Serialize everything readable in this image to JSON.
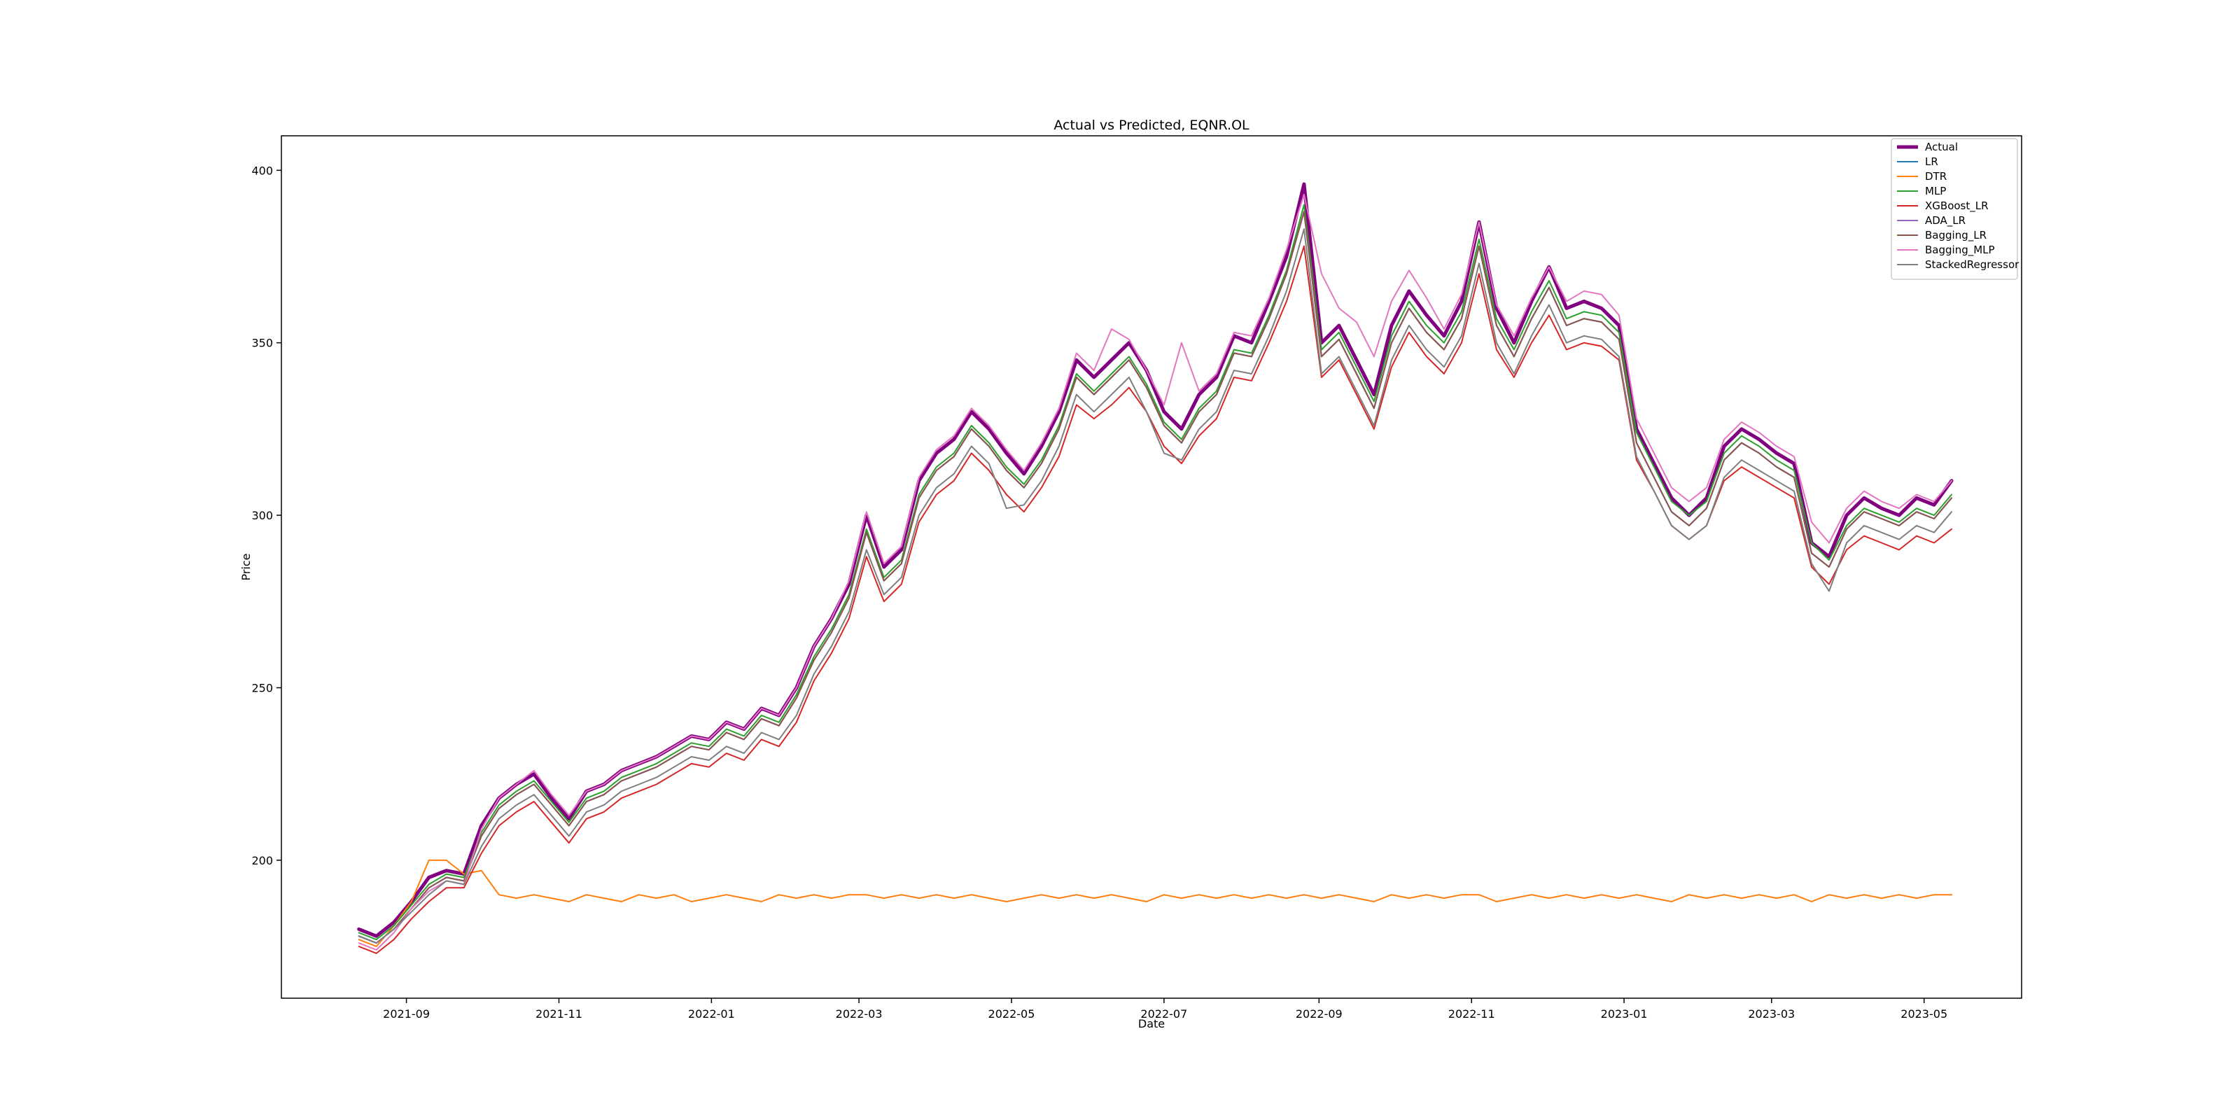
{
  "chart_data": {
    "type": "line",
    "title": "Actual vs Predicted, EQNR.OL",
    "xlabel": "Date",
    "ylabel": "Price",
    "xlim": [
      "2021-07-13",
      "2023-06-09"
    ],
    "ylim": [
      160,
      410
    ],
    "x_ticks": [
      "2021-09",
      "2021-11",
      "2022-01",
      "2022-03",
      "2022-05",
      "2022-07",
      "2022-09",
      "2022-11",
      "2023-01",
      "2023-03",
      "2023-05"
    ],
    "y_ticks": [
      200,
      250,
      300,
      350,
      400
    ],
    "grid": false,
    "legend_position": "upper-right",
    "x": [
      "2021-08-13",
      "2021-08-20",
      "2021-08-27",
      "2021-09-03",
      "2021-09-10",
      "2021-09-17",
      "2021-09-24",
      "2021-10-01",
      "2021-10-08",
      "2021-10-15",
      "2021-10-22",
      "2021-10-29",
      "2021-11-05",
      "2021-11-12",
      "2021-11-19",
      "2021-11-26",
      "2021-12-03",
      "2021-12-10",
      "2021-12-17",
      "2021-12-24",
      "2021-12-31",
      "2022-01-07",
      "2022-01-14",
      "2022-01-21",
      "2022-01-28",
      "2022-02-04",
      "2022-02-11",
      "2022-02-18",
      "2022-02-25",
      "2022-03-04",
      "2022-03-11",
      "2022-03-18",
      "2022-03-25",
      "2022-04-01",
      "2022-04-08",
      "2022-04-15",
      "2022-04-22",
      "2022-04-29",
      "2022-05-06",
      "2022-05-13",
      "2022-05-20",
      "2022-05-27",
      "2022-06-03",
      "2022-06-10",
      "2022-06-17",
      "2022-06-24",
      "2022-07-01",
      "2022-07-08",
      "2022-07-15",
      "2022-07-22",
      "2022-07-29",
      "2022-08-05",
      "2022-08-12",
      "2022-08-19",
      "2022-08-26",
      "2022-09-02",
      "2022-09-09",
      "2022-09-16",
      "2022-09-23",
      "2022-09-30",
      "2022-10-07",
      "2022-10-14",
      "2022-10-21",
      "2022-10-28",
      "2022-11-04",
      "2022-11-11",
      "2022-11-18",
      "2022-11-25",
      "2022-12-02",
      "2022-12-09",
      "2022-12-16",
      "2022-12-23",
      "2022-12-30",
      "2023-01-06",
      "2023-01-13",
      "2023-01-20",
      "2023-01-27",
      "2023-02-03",
      "2023-02-10",
      "2023-02-17",
      "2023-02-24",
      "2023-03-03",
      "2023-03-10",
      "2023-03-17",
      "2023-03-24",
      "2023-03-31",
      "2023-04-07",
      "2023-04-14",
      "2023-04-21",
      "2023-04-28",
      "2023-05-05",
      "2023-05-12"
    ],
    "series": [
      {
        "name": "Actual",
        "color": "#800080",
        "width": 5,
        "values": [
          180,
          178,
          182,
          188,
          195,
          197,
          196,
          210,
          218,
          222,
          225,
          218,
          212,
          220,
          222,
          226,
          228,
          230,
          233,
          236,
          235,
          240,
          238,
          244,
          242,
          250,
          262,
          270,
          280,
          300,
          285,
          290,
          310,
          318,
          322,
          330,
          325,
          318,
          312,
          320,
          330,
          345,
          340,
          345,
          350,
          342,
          330,
          325,
          335,
          340,
          352,
          350,
          362,
          375,
          396,
          350,
          355,
          345,
          335,
          355,
          365,
          358,
          352,
          362,
          385,
          360,
          350,
          362,
          372,
          360,
          362,
          360,
          355,
          325,
          315,
          305,
          300,
          305,
          320,
          325,
          322,
          318,
          315,
          292,
          288,
          300,
          305,
          302,
          300,
          305,
          303,
          310
        ]
      },
      {
        "name": "LR",
        "color": "#1f77b4",
        "width": 2,
        "values": [
          178,
          176,
          180,
          186,
          192,
          195,
          194,
          207,
          215,
          219,
          222,
          216,
          210,
          217,
          219,
          223,
          225,
          227,
          230,
          233,
          232,
          237,
          235,
          241,
          239,
          247,
          258,
          266,
          276,
          295,
          281,
          286,
          305,
          313,
          317,
          325,
          320,
          313,
          308,
          315,
          325,
          340,
          335,
          340,
          345,
          337,
          326,
          321,
          330,
          335,
          347,
          346,
          357,
          370,
          388,
          346,
          351,
          341,
          331,
          350,
          360,
          353,
          348,
          357,
          378,
          355,
          346,
          357,
          366,
          355,
          357,
          356,
          351,
          321,
          311,
          301,
          297,
          302,
          316,
          321,
          318,
          314,
          311,
          289,
          285,
          296,
          301,
          299,
          297,
          301,
          299,
          305
        ]
      },
      {
        "name": "DTR",
        "color": "#ff7f0e",
        "width": 2,
        "values": [
          177,
          175,
          181,
          188,
          200,
          200,
          196,
          197,
          190,
          189,
          190,
          189,
          188,
          190,
          189,
          188,
          190,
          189,
          190,
          188,
          189,
          190,
          189,
          188,
          190,
          189,
          190,
          189,
          190,
          190,
          189,
          190,
          189,
          190,
          189,
          190,
          189,
          188,
          189,
          190,
          189,
          190,
          189,
          190,
          189,
          188,
          190,
          189,
          190,
          189,
          190,
          189,
          190,
          189,
          190,
          189,
          190,
          189,
          188,
          190,
          189,
          190,
          189,
          190,
          190,
          188,
          189,
          190,
          189,
          190,
          189,
          190,
          189,
          190,
          189,
          188,
          190,
          189,
          190,
          189,
          190,
          189,
          190,
          188,
          190,
          189,
          190,
          189,
          190,
          189,
          190,
          190
        ]
      },
      {
        "name": "MLP",
        "color": "#2ca02c",
        "width": 2,
        "values": [
          179,
          177,
          181,
          187,
          193,
          196,
          195,
          208,
          216,
          220,
          223,
          217,
          211,
          218,
          220,
          224,
          226,
          228,
          231,
          234,
          233,
          238,
          236,
          242,
          240,
          248,
          259,
          267,
          277,
          296,
          282,
          287,
          306,
          314,
          318,
          326,
          321,
          314,
          309,
          316,
          326,
          341,
          336,
          341,
          346,
          338,
          327,
          322,
          331,
          336,
          348,
          347,
          358,
          371,
          390,
          348,
          353,
          343,
          333,
          352,
          362,
          355,
          350,
          359,
          380,
          357,
          348,
          359,
          368,
          357,
          359,
          358,
          353,
          324,
          314,
          304,
          300,
          304,
          318,
          323,
          320,
          316,
          313,
          292,
          287,
          297,
          302,
          300,
          298,
          302,
          300,
          306
        ]
      },
      {
        "name": "XGBoost_LR",
        "color": "#d62728",
        "width": 2,
        "values": [
          175,
          173,
          177,
          183,
          188,
          192,
          192,
          202,
          210,
          214,
          217,
          211,
          205,
          212,
          214,
          218,
          220,
          222,
          225,
          228,
          227,
          231,
          229,
          235,
          233,
          240,
          252,
          260,
          270,
          288,
          275,
          280,
          298,
          306,
          310,
          318,
          313,
          306,
          301,
          308,
          317,
          332,
          328,
          332,
          337,
          330,
          320,
          315,
          323,
          328,
          340,
          339,
          350,
          362,
          378,
          340,
          345,
          335,
          325,
          343,
          353,
          346,
          341,
          350,
          370,
          348,
          340,
          350,
          358,
          348,
          350,
          349,
          345,
          316,
          307,
          297,
          293,
          297,
          310,
          314,
          311,
          308,
          305,
          285,
          280,
          290,
          294,
          292,
          290,
          294,
          292,
          296
        ]
      },
      {
        "name": "ADA_LR",
        "color": "#9467bd",
        "width": 2,
        "values": [
          178,
          176,
          180,
          186,
          192,
          195,
          194,
          207,
          215,
          219,
          222,
          216,
          210,
          217,
          219,
          223,
          225,
          227,
          230,
          233,
          232,
          237,
          235,
          241,
          239,
          247,
          258,
          266,
          276,
          295,
          281,
          286,
          305,
          313,
          317,
          325,
          320,
          313,
          308,
          315,
          325,
          340,
          335,
          340,
          345,
          337,
          326,
          321,
          330,
          335,
          347,
          346,
          357,
          370,
          388,
          346,
          351,
          341,
          331,
          350,
          360,
          353,
          348,
          357,
          378,
          355,
          346,
          357,
          366,
          355,
          357,
          356,
          351,
          321,
          311,
          301,
          297,
          302,
          316,
          321,
          318,
          314,
          311,
          289,
          285,
          296,
          301,
          299,
          297,
          301,
          299,
          305
        ]
      },
      {
        "name": "Bagging_LR",
        "color": "#8c564b",
        "width": 2,
        "values": [
          178,
          176,
          180,
          186,
          192,
          195,
          194,
          207,
          215,
          219,
          222,
          216,
          210,
          217,
          219,
          223,
          225,
          227,
          230,
          233,
          232,
          237,
          235,
          241,
          239,
          247,
          258,
          266,
          276,
          295,
          281,
          286,
          305,
          313,
          317,
          325,
          320,
          313,
          308,
          315,
          325,
          340,
          335,
          340,
          345,
          337,
          326,
          321,
          330,
          335,
          347,
          346,
          357,
          370,
          388,
          346,
          351,
          341,
          331,
          350,
          360,
          353,
          348,
          357,
          378,
          355,
          346,
          357,
          366,
          355,
          357,
          356,
          351,
          321,
          311,
          301,
          297,
          302,
          316,
          321,
          318,
          314,
          311,
          289,
          285,
          296,
          301,
          299,
          297,
          301,
          299,
          305
        ]
      },
      {
        "name": "Bagging_MLP",
        "color": "#e377c2",
        "width": 2,
        "values": [
          176,
          174,
          179,
          186,
          191,
          194,
          193,
          209,
          218,
          222,
          226,
          219,
          213,
          220,
          222,
          226,
          228,
          230,
          233,
          236,
          235,
          240,
          238,
          244,
          242,
          250,
          262,
          270,
          281,
          301,
          286,
          291,
          311,
          319,
          323,
          331,
          326,
          319,
          313,
          321,
          331,
          347,
          342,
          354,
          351,
          342,
          332,
          350,
          336,
          341,
          353,
          352,
          363,
          377,
          393,
          370,
          360,
          356,
          346,
          362,
          371,
          363,
          354,
          364,
          385,
          361,
          352,
          363,
          372,
          362,
          365,
          364,
          358,
          328,
          318,
          308,
          304,
          308,
          322,
          327,
          324,
          320,
          317,
          298,
          292,
          302,
          307,
          304,
          302,
          306,
          304,
          310
        ]
      },
      {
        "name": "StackedRegressor",
        "color": "#7f7f7f",
        "width": 2,
        "values": [
          178,
          176,
          180,
          185,
          190,
          194,
          193,
          204,
          212,
          216,
          219,
          213,
          207,
          214,
          216,
          220,
          222,
          224,
          227,
          230,
          229,
          233,
          231,
          237,
          235,
          242,
          254,
          262,
          272,
          290,
          277,
          282,
          300,
          308,
          312,
          320,
          315,
          302,
          303,
          310,
          320,
          335,
          330,
          335,
          340,
          330,
          318,
          316,
          325,
          330,
          342,
          341,
          352,
          365,
          383,
          341,
          346,
          336,
          326,
          345,
          355,
          348,
          343,
          352,
          373,
          350,
          341,
          352,
          361,
          350,
          352,
          351,
          346,
          317,
          307,
          297,
          293,
          297,
          311,
          316,
          313,
          310,
          307,
          286,
          278,
          292,
          297,
          295,
          293,
          297,
          295,
          301
        ]
      }
    ]
  }
}
